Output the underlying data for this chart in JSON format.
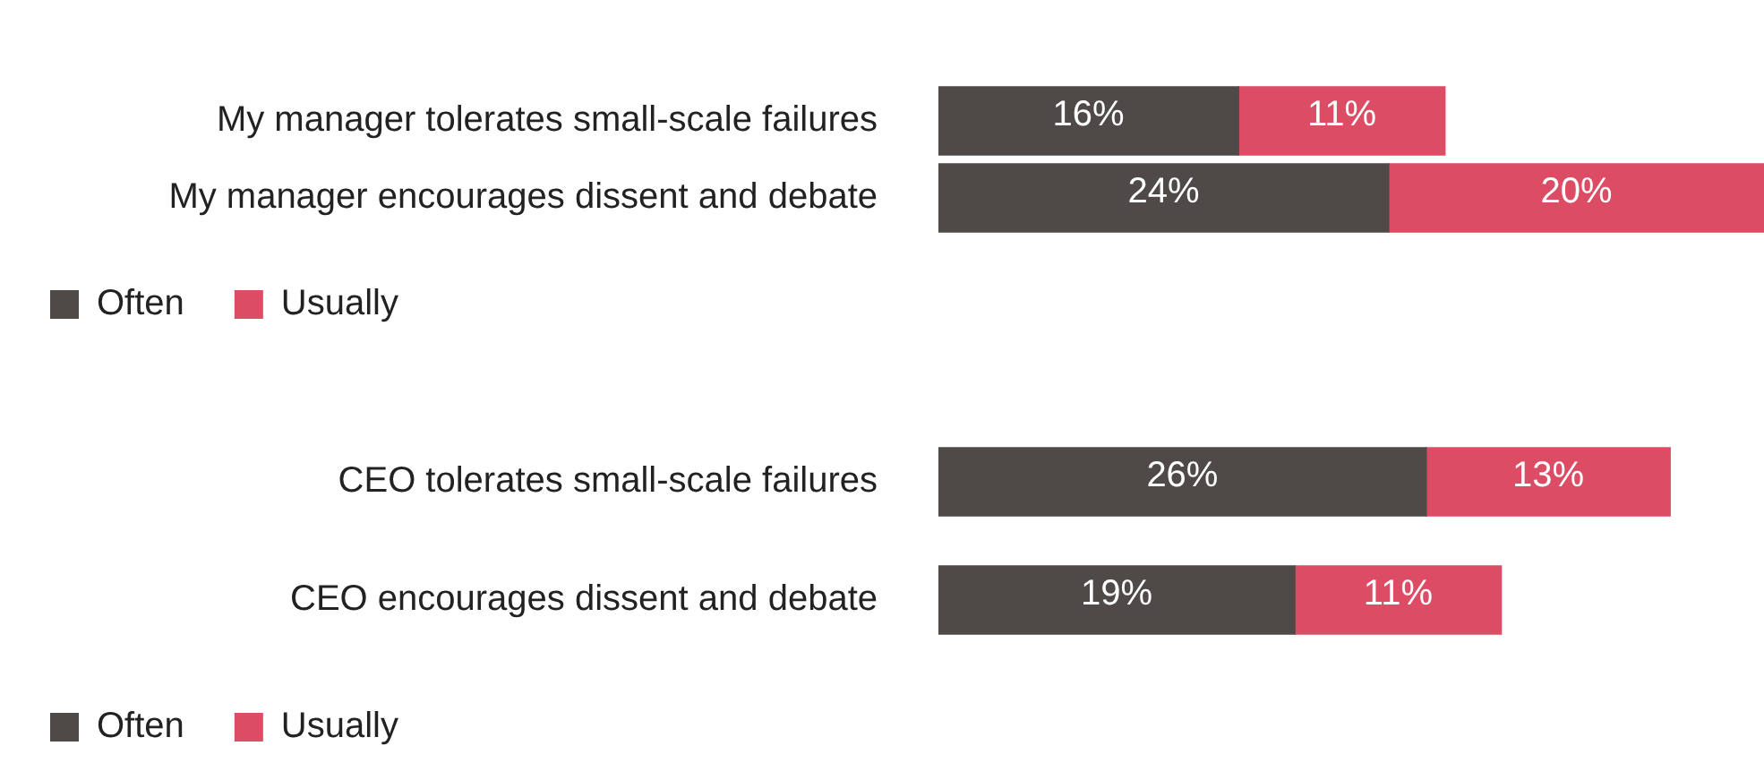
{
  "chart_data": [
    {
      "type": "bar",
      "orientation": "horizontal",
      "stacked": true,
      "categories": [
        "My manager tolerates small-scale failures",
        "My manager encourages dissent and debate"
      ],
      "tick_labels": "y",
      "legend": "bottom",
      "series": [
        {
          "name": "Often",
          "color": "#4f4a48",
          "values": [
            16,
            24
          ],
          "value_labels": [
            "16%",
            "24%"
          ]
        },
        {
          "name": "Usually",
          "color": "#dc4c64",
          "values": [
            11,
            20
          ],
          "value_labels": [
            "11%",
            "20%"
          ]
        }
      ]
    },
    {
      "type": "bar",
      "orientation": "horizontal",
      "stacked": true,
      "categories": [
        "CEO tolerates small-scale failures",
        "CEO encourages dissent and debate"
      ],
      "tick_labels": "y",
      "legend": "bottom",
      "series": [
        {
          "name": "Often",
          "color": "#4f4a48",
          "values": [
            26,
            19
          ],
          "value_labels": [
            "26%",
            "19%"
          ]
        },
        {
          "name": "Usually",
          "color": "#dc4c64",
          "values": [
            13,
            11
          ],
          "value_labels": [
            "13%",
            "11%"
          ]
        }
      ]
    }
  ]
}
